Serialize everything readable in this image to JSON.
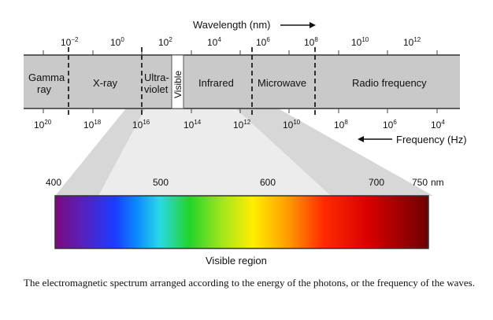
{
  "diagram": {
    "wavelength_label": "Wavelength (nm)",
    "frequency_label": "Frequency (Hz)",
    "wavelength_ticks": [
      {
        "base": "10",
        "exp": "−2"
      },
      {
        "base": "10",
        "exp": "0"
      },
      {
        "base": "10",
        "exp": "2"
      },
      {
        "base": "10",
        "exp": "4"
      },
      {
        "base": "10",
        "exp": "6"
      },
      {
        "base": "10",
        "exp": "8"
      },
      {
        "base": "10",
        "exp": "10"
      },
      {
        "base": "10",
        "exp": "12"
      }
    ],
    "frequency_ticks": [
      {
        "base": "10",
        "exp": "20"
      },
      {
        "base": "10",
        "exp": "18"
      },
      {
        "base": "10",
        "exp": "16"
      },
      {
        "base": "10",
        "exp": "14"
      },
      {
        "base": "10",
        "exp": "12"
      },
      {
        "base": "10",
        "exp": "10"
      },
      {
        "base": "10",
        "exp": "8"
      },
      {
        "base": "10",
        "exp": "6"
      },
      {
        "base": "10",
        "exp": "4"
      }
    ],
    "regions": {
      "gamma_line1": "Gamma",
      "gamma_line2": "ray",
      "xray": "X-ray",
      "uv_line1": "Ultra-",
      "uv_line2": "violet",
      "visible": "Visible",
      "infrared": "Infrared",
      "microwave": "Microwave",
      "radio": "Radio frequency"
    },
    "visible_ticks": [
      "400",
      "500",
      "600",
      "700",
      "750"
    ],
    "visible_unit": "nm",
    "visible_region_label": "Visible region",
    "caption": "The electromagnetic spectrum arranged according to the energy of the photons, or the frequency of the waves."
  }
}
